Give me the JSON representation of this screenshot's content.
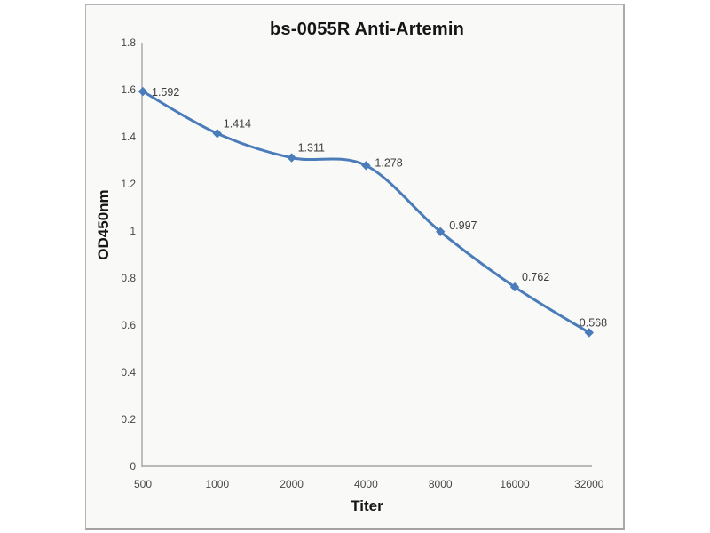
{
  "chart_data": {
    "type": "line",
    "title": "bs-0055R Anti-Artemin",
    "xlabel": "Titer",
    "ylabel": "OD450nm",
    "x_scale": "categorical (2-fold serial dilution)",
    "categories": [
      500,
      1000,
      2000,
      4000,
      8000,
      16000,
      32000
    ],
    "x_tick_labels": [
      "500",
      "1000",
      "2000",
      "4000",
      "8000",
      "16000",
      "32000"
    ],
    "series": [
      {
        "name": "bs-0055R Anti-Artemin",
        "values": [
          1.592,
          1.414,
          1.311,
          1.278,
          0.997,
          0.762,
          0.568
        ],
        "data_labels": [
          "1.592",
          "1.414",
          "1.311",
          "1.278",
          "0.997",
          "0.762",
          "0.568"
        ]
      }
    ],
    "ylim": [
      0,
      1.8
    ],
    "y_ticks": [
      0,
      0.2,
      0.4,
      0.6,
      0.8,
      1,
      1.2,
      1.4,
      1.6,
      1.8
    ],
    "y_tick_labels": [
      "0",
      "0.2",
      "0.4",
      "0.6",
      "0.8",
      "1",
      "1.2",
      "1.4",
      "1.6",
      "1.8"
    ],
    "grid": false,
    "legend": "none",
    "line_style": "smooth",
    "marker": "diamond"
  },
  "style": {
    "series_color": "#4b7cba",
    "frame_background": "#f9f9f8",
    "frame_border_color": "#b5b5b5",
    "axis_line_color": "#a6a6a6",
    "tick_label_color": "#474747",
    "data_label_color": "#3d3d3d",
    "title_color": "#151515"
  }
}
